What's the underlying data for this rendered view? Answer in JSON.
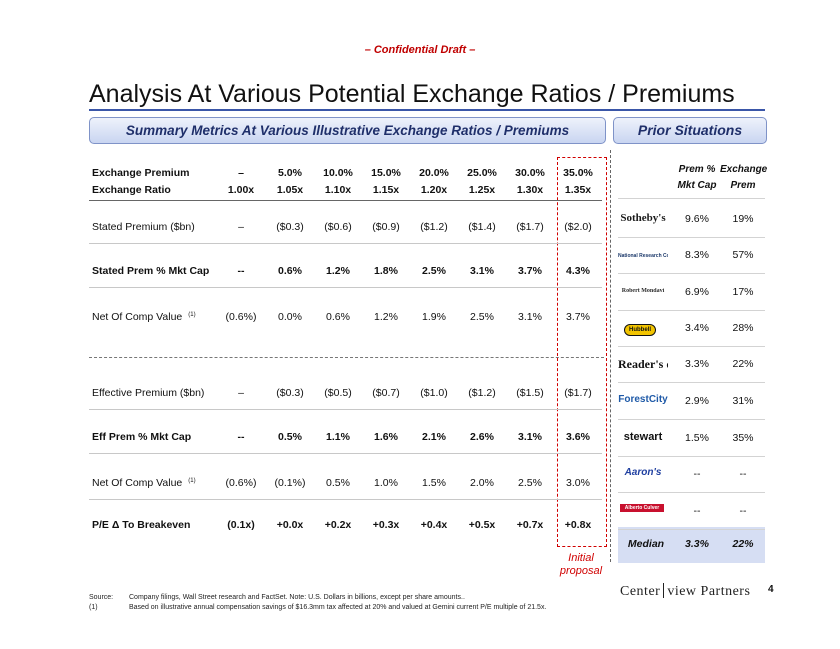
{
  "draft_label": "– Confidential Draft –",
  "title": "Analysis At Various Potential Exchange Ratios / Premiums",
  "summary_header": "Summary Metrics At Various Illustrative Exchange Ratios / Premiums",
  "prior_header": "Prior Situations",
  "table": {
    "columns": [
      {
        "premium": "–",
        "ratio": "1.00x"
      },
      {
        "premium": "5.0%",
        "ratio": "1.05x"
      },
      {
        "premium": "10.0%",
        "ratio": "1.10x"
      },
      {
        "premium": "15.0%",
        "ratio": "1.15x"
      },
      {
        "premium": "20.0%",
        "ratio": "1.20x"
      },
      {
        "premium": "25.0%",
        "ratio": "1.25x"
      },
      {
        "premium": "30.0%",
        "ratio": "1.30x"
      },
      {
        "premium": "35.0%",
        "ratio": "1.35x"
      }
    ],
    "premium_label": "Exchange Premium",
    "ratio_label": "Exchange Ratio",
    "rows": [
      {
        "label": "Stated Premium ($bn)",
        "note": "",
        "bold": false,
        "values": [
          "–",
          "($0.3)",
          "($0.6)",
          "($0.9)",
          "($1.2)",
          "($1.4)",
          "($1.7)",
          "($2.0)"
        ]
      },
      {
        "label": "Stated Prem % Mkt Cap",
        "note": "",
        "bold": true,
        "values": [
          "--",
          "0.6%",
          "1.2%",
          "1.8%",
          "2.5%",
          "3.1%",
          "3.7%",
          "4.3%"
        ]
      },
      {
        "label": "Net Of Comp Value",
        "note": "(1)",
        "bold": false,
        "values": [
          "(0.6%)",
          "0.0%",
          "0.6%",
          "1.2%",
          "1.9%",
          "2.5%",
          "3.1%",
          "3.7%"
        ]
      },
      {
        "label": "Effective Premium ($bn)",
        "note": "",
        "bold": false,
        "values": [
          "–",
          "($0.3)",
          "($0.5)",
          "($0.7)",
          "($1.0)",
          "($1.2)",
          "($1.5)",
          "($1.7)"
        ]
      },
      {
        "label": "Eff Prem % Mkt Cap",
        "note": "",
        "bold": true,
        "values": [
          "--",
          "0.5%",
          "1.1%",
          "1.6%",
          "2.1%",
          "2.6%",
          "3.1%",
          "3.6%"
        ]
      },
      {
        "label": "Net Of Comp Value",
        "note": "(1)",
        "bold": false,
        "values": [
          "(0.6%)",
          "(0.1%)",
          "0.5%",
          "1.0%",
          "1.5%",
          "2.0%",
          "2.5%",
          "3.0%"
        ]
      },
      {
        "label": "P/E  Δ  To Breakeven",
        "note": "",
        "bold": true,
        "values": [
          "(0.1x)",
          "+0.0x",
          "+0.2x",
          "+0.3x",
          "+0.4x",
          "+0.5x",
          "+0.7x",
          "+0.8x"
        ]
      }
    ]
  },
  "initial_proposal_label": "Initial proposal",
  "prior": {
    "col1_header_line1": "Prem %",
    "col1_header_line2": "Mkt Cap",
    "col2_header_line1": "Exchange",
    "col2_header_line2": "Prem",
    "rows": [
      {
        "company": "Sotheby's",
        "logo_color": "#1a1a1a",
        "mkt": "9.6%",
        "prem": "19%"
      },
      {
        "company": "National Research Corporation",
        "logo_color": "#1d3a6b",
        "mkt": "8.3%",
        "prem": "57%"
      },
      {
        "company": "Robert Mondavi",
        "logo_color": "#2b2b2b",
        "mkt": "6.9%",
        "prem": "17%"
      },
      {
        "company": "Hubbell",
        "logo_color": "#f2c400",
        "mkt": "3.4%",
        "prem": "28%"
      },
      {
        "company": "Reader's digest",
        "logo_color": "#111111",
        "mkt": "3.3%",
        "prem": "22%"
      },
      {
        "company": "ForestCity",
        "logo_color": "#1f5aa8",
        "mkt": "2.9%",
        "prem": "31%"
      },
      {
        "company": "stewart",
        "logo_color": "#111111",
        "mkt": "1.5%",
        "prem": "35%"
      },
      {
        "company": "Aaron's",
        "logo_color": "#1f3fa0",
        "mkt": "--",
        "prem": "--"
      },
      {
        "company": "Alberto Culver",
        "logo_color": "#c8102e",
        "mkt": "--",
        "prem": "--"
      }
    ],
    "median_label": "Median",
    "median_mkt": "3.3%",
    "median_prem": "22%"
  },
  "footnotes": {
    "source_label": "Source:",
    "source_text": "Company filings, Wall Street research and FactSet. Note: U.S. Dollars in billions, except per share amounts..",
    "note1_label": "(1)",
    "note1_text": "Based on illustrative annual compensation savings of $16.3mm tax affected at 20% and valued at Gemini current P/E multiple of 21.5x."
  },
  "page_number": "4",
  "firm_logo": {
    "left": "Center",
    "right": "view Partners"
  }
}
